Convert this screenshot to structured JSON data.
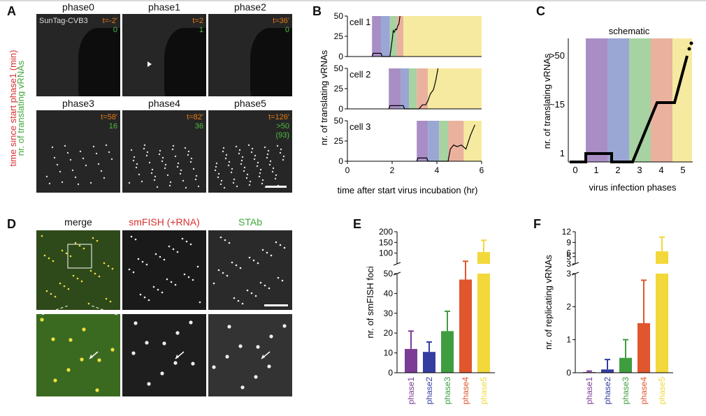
{
  "panels": {
    "A": {
      "label": "A",
      "side_label_red": "time since start phase1 (min)",
      "side_label_green": "nr. of translating vRNAs",
      "channel_label": "SunTag-CVB3",
      "tiles": [
        {
          "title": "phase0",
          "time": "t=-2'",
          "count": "0",
          "extra": ""
        },
        {
          "title": "phase1",
          "time": "t=2",
          "count": "1",
          "extra": ""
        },
        {
          "title": "phase2",
          "time": "t=36'",
          "count": "0",
          "extra": ""
        },
        {
          "title": "phase3",
          "time": "t=58'",
          "count": "16",
          "extra": ""
        },
        {
          "title": "phase4",
          "time": "t=82'",
          "count": "36",
          "extra": ""
        },
        {
          "title": "phase5",
          "time": "t=126'",
          "count": ">50",
          "extra": "(93)"
        }
      ]
    },
    "B": {
      "label": "B",
      "xlabel": "time after start virus incubation (hr)",
      "ylabel": "nr. of translating vRNAs",
      "cells": [
        "cell 1",
        "cell 2",
        "cell 3"
      ],
      "yticks": [
        "0",
        "25",
        "50"
      ],
      "xticks": [
        "0",
        "2",
        "4",
        "6"
      ]
    },
    "C": {
      "label": "C",
      "title": "schematic",
      "ylabel": "nr. of translating vRNAs",
      "xlabel": "virus infection phases",
      "yticks": [
        ">50",
        "~15",
        "1"
      ],
      "xticks": [
        "0",
        "1",
        "2",
        "3",
        "4",
        "5"
      ]
    },
    "D": {
      "label": "D",
      "titles": [
        "merge",
        "smFISH (+RNA)",
        "STAb"
      ]
    },
    "E": {
      "label": "E"
    },
    "F": {
      "label": "F"
    }
  },
  "phase_colors": {
    "phase1": "#a98ec6",
    "phase2": "#9aa6d4",
    "phase3": "#a6d3a1",
    "phase4": "#eab29e",
    "phase5": "#f6eaa0"
  },
  "chart_data": [
    {
      "type": "line",
      "panel": "B",
      "title": "",
      "xlabel": "time after start virus incubation (hr)",
      "ylabel": "nr. of translating vRNAs",
      "xlim": [
        0,
        6
      ],
      "ylim": [
        0,
        50
      ],
      "series": [
        {
          "name": "cell 1",
          "x": [
            1.1,
            1.15,
            1.5,
            1.55,
            1.9,
            2.0,
            2.05,
            2.1,
            2.15,
            2.2,
            2.25,
            2.3,
            2.35
          ],
          "y": [
            0,
            4,
            4,
            0,
            0,
            20,
            32,
            30,
            34,
            33,
            38,
            40,
            50
          ]
        },
        {
          "name": "cell 2",
          "x": [
            1.85,
            1.9,
            2.5,
            2.55,
            3.2,
            3.35,
            3.5,
            3.6,
            3.7,
            3.85,
            3.95,
            4.05
          ],
          "y": [
            0,
            4,
            4,
            0,
            0,
            5,
            5,
            10,
            18,
            24,
            35,
            50
          ]
        },
        {
          "name": "cell 3",
          "x": [
            3.1,
            3.15,
            3.55,
            3.6,
            4.5,
            4.6,
            4.75,
            4.9,
            5.1,
            5.3,
            5.5,
            5.7
          ],
          "y": [
            0,
            4,
            4,
            0,
            0,
            15,
            20,
            18,
            20,
            15,
            32,
            45
          ]
        }
      ]
    },
    {
      "type": "bar",
      "panel": "E",
      "ylabel": "nr. of smFISH foci",
      "categories": [
        "phase1",
        "phase2",
        "phase3",
        "phase4",
        "phase5"
      ],
      "values": [
        12,
        10.5,
        21,
        47,
        105
      ],
      "errors": [
        9,
        5,
        10,
        15,
        55
      ],
      "colors": [
        "#7b3c95",
        "#343ea0",
        "#3e9e3f",
        "#e0562d",
        "#f2d83a"
      ],
      "ylim": [
        0,
        200
      ],
      "yticks": [
        "0",
        "10",
        "20",
        "30",
        "40",
        "50",
        "100",
        "150",
        "200"
      ],
      "axis_break": [
        50,
        90
      ]
    },
    {
      "type": "bar",
      "panel": "F",
      "ylabel": "nr. of replicating vRNAs",
      "categories": [
        "phase1",
        "phase2",
        "phase3",
        "phase4",
        "phase5"
      ],
      "values": [
        0.02,
        0.1,
        0.45,
        1.5,
        6.5
      ],
      "errors": [
        0.03,
        0.3,
        0.55,
        1.3,
        4
      ],
      "colors": [
        "#7b3c95",
        "#343ea0",
        "#3e9e3f",
        "#e0562d",
        "#f2d83a"
      ],
      "ylim": [
        0,
        12
      ],
      "yticks": [
        "0",
        "1",
        "2",
        "3",
        "5",
        "6",
        "9",
        "12"
      ],
      "axis_break": [
        3,
        3.5
      ]
    }
  ]
}
